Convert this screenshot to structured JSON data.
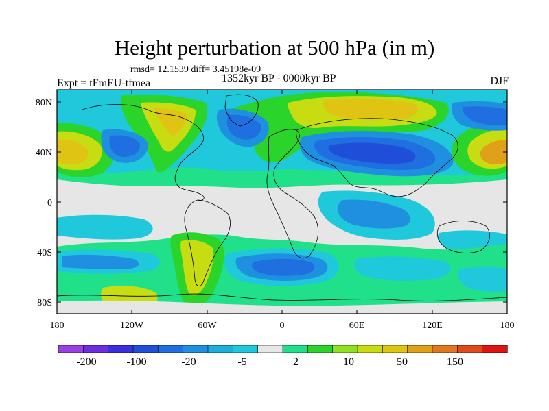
{
  "title": "Height perturbation at 500 hPa (in m)",
  "stats_text": "rmsd= 12.1539 diff= 3.45198e-09",
  "experiment_text": "Expt = tFmEU-tfmea",
  "period_text": "1352kyr BP - 0000kyr BP",
  "season_text": "DJF",
  "axes": {
    "lat_ticks": [
      "80N",
      "40N",
      "0",
      "40S",
      "80S"
    ],
    "lon_ticks": [
      "180",
      "120W",
      "60W",
      "0",
      "60E",
      "120E",
      "180"
    ]
  },
  "colorbar": {
    "labels": [
      "-200",
      "-100",
      "-20",
      "-5",
      "2",
      "10",
      "50",
      "150"
    ],
    "colors": [
      "#9a3fe0",
      "#6d2ee0",
      "#3a2fe0",
      "#1f4fd8",
      "#1f6fe0",
      "#1f90e0",
      "#1eaedc",
      "#20c8dc",
      "#e6e6e6",
      "#20e08a",
      "#2ad42a",
      "#8ee020",
      "#c8dc12",
      "#e0c414",
      "#e0a01a",
      "#e0781e",
      "#e04a1a",
      "#e01212"
    ]
  },
  "colors": {
    "neutral": "#e6e6e6",
    "background": "#ffffff"
  }
}
